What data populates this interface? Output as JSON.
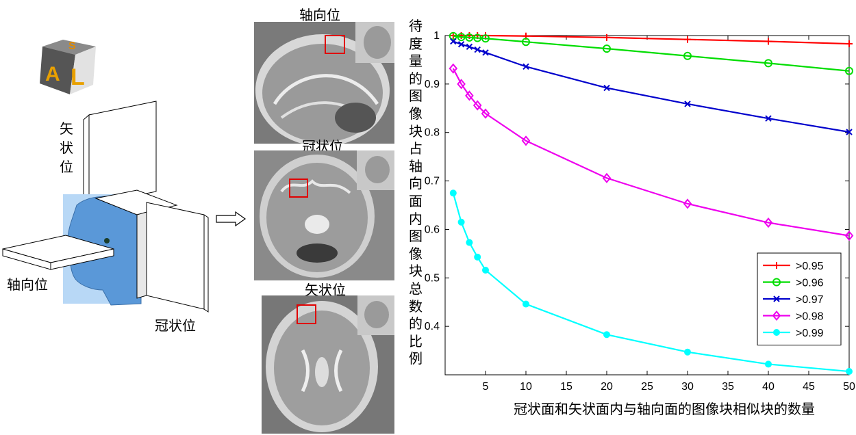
{
  "left_panel": {
    "cube_letters": [
      "S",
      "A",
      "L"
    ],
    "sagittal_label": "矢状位",
    "axial_label": "轴向位",
    "coronal_label": "冠状位"
  },
  "mri_panel": {
    "axial_title": "轴向位",
    "coronal_title": "冠状位",
    "sagittal_title": "矢状位"
  },
  "chart_data": {
    "type": "line",
    "xlabel": "冠状面和矢状面内与轴向面的图像块相似块的数量",
    "ylabel": "待度量的图像块占轴向面内图像块总数的比例",
    "xlim": [
      0,
      50
    ],
    "ylim": [
      0.3,
      1.0
    ],
    "xticks": [
      5,
      10,
      15,
      20,
      25,
      30,
      35,
      40,
      45,
      50
    ],
    "yticks": [
      0.4,
      0.5,
      0.6,
      0.7,
      0.8,
      0.9,
      1
    ],
    "legend_position": "bottom-right",
    "grid": false,
    "x": [
      1,
      2,
      3,
      4,
      5,
      10,
      20,
      30,
      40,
      50
    ],
    "series": [
      {
        "name": ">0.95",
        "color": "#ff0000",
        "marker": "plus",
        "values": [
          1.0,
          1.0,
          1.0,
          1.0,
          1.0,
          0.999,
          0.996,
          0.992,
          0.988,
          0.983
        ]
      },
      {
        "name": ">0.96",
        "color": "#00dd00",
        "marker": "circle",
        "values": [
          0.999,
          0.997,
          0.996,
          0.995,
          0.994,
          0.987,
          0.973,
          0.958,
          0.943,
          0.927
        ]
      },
      {
        "name": ">0.97",
        "color": "#0000cc",
        "marker": "x",
        "values": [
          0.988,
          0.982,
          0.977,
          0.971,
          0.965,
          0.936,
          0.892,
          0.859,
          0.829,
          0.801
        ]
      },
      {
        "name": ">0.98",
        "color": "#ee00ee",
        "marker": "diamond",
        "values": [
          0.932,
          0.9,
          0.876,
          0.856,
          0.839,
          0.783,
          0.706,
          0.653,
          0.614,
          0.587
        ]
      },
      {
        "name": ">0.99",
        "color": "#00ffff",
        "marker": "dot",
        "values": [
          0.675,
          0.615,
          0.573,
          0.543,
          0.516,
          0.446,
          0.383,
          0.347,
          0.322,
          0.307
        ]
      }
    ]
  }
}
